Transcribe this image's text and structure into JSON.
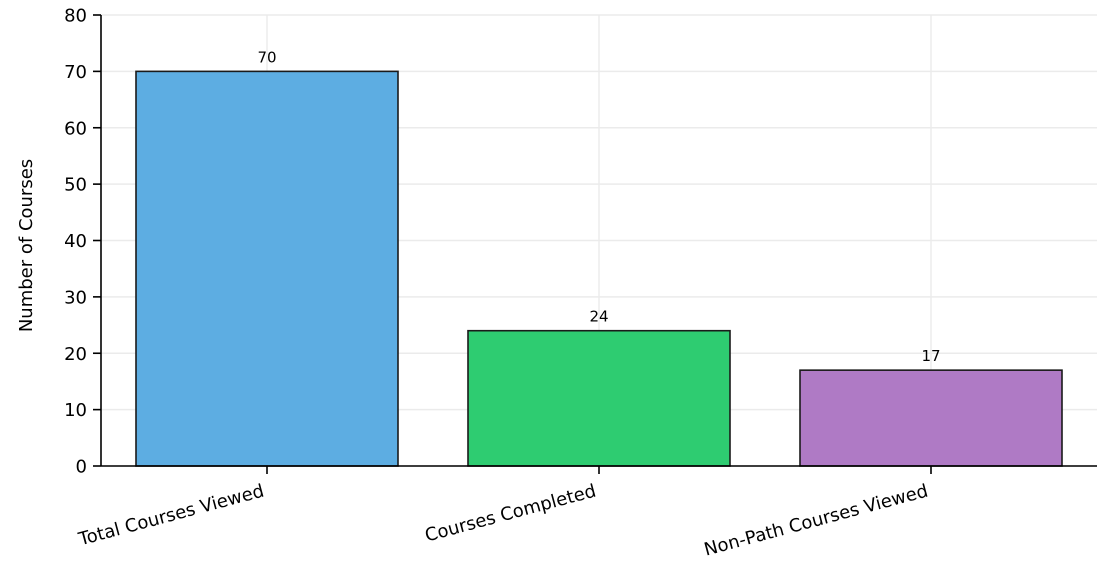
{
  "chart_data": {
    "type": "bar",
    "title": "",
    "xlabel": "",
    "ylabel": "Number of Courses",
    "categories": [
      "Total Courses Viewed",
      "Courses Completed",
      "Non-Path Courses Viewed"
    ],
    "values": [
      70,
      24,
      17
    ],
    "data_labels": [
      "70",
      "24",
      "17"
    ],
    "colors": [
      "#5dade2",
      "#2ecc71",
      "#af7ac5"
    ],
    "ylim": [
      0,
      80
    ],
    "yticks": [
      0,
      10,
      20,
      30,
      40,
      50,
      60,
      70,
      80
    ],
    "grid": true,
    "legend": "none"
  }
}
